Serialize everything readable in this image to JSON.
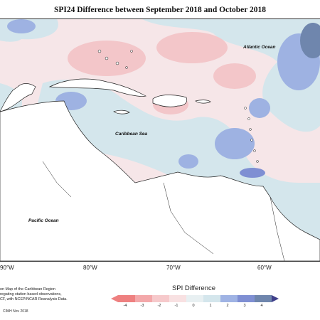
{
  "title": "SPI24 Difference between September 2018 and October 2018",
  "labels": {
    "atlantic": "Atlantic Ocean",
    "caribbean": "Caribbean Sea",
    "pacific": "Pacific Ocean"
  },
  "longitudes": [
    "90°W",
    "80°W",
    "70°W",
    "60°W"
  ],
  "notes": [
    "on Map of the Caribbean Region",
    "regating station based observations,",
    "CF, with NCEP/NCAR Reanalysis Data."
  ],
  "credit": "CIMH Nov 2018",
  "legend": {
    "title": "SPI Difference",
    "ticks": [
      "-4",
      "-3",
      "-2",
      "-1",
      "0",
      "1",
      "2",
      "3",
      "4"
    ],
    "colors": [
      "#ee8080",
      "#f3a8aa",
      "#f6c9cb",
      "#f8e1e2",
      "#d4e6ec",
      "#9fb3e4",
      "#7f8fd3",
      "#6f86ad",
      "#3f3f8a"
    ]
  },
  "icons": {
    "legend_left": "triangle-left",
    "legend_right": "triangle-right"
  }
}
